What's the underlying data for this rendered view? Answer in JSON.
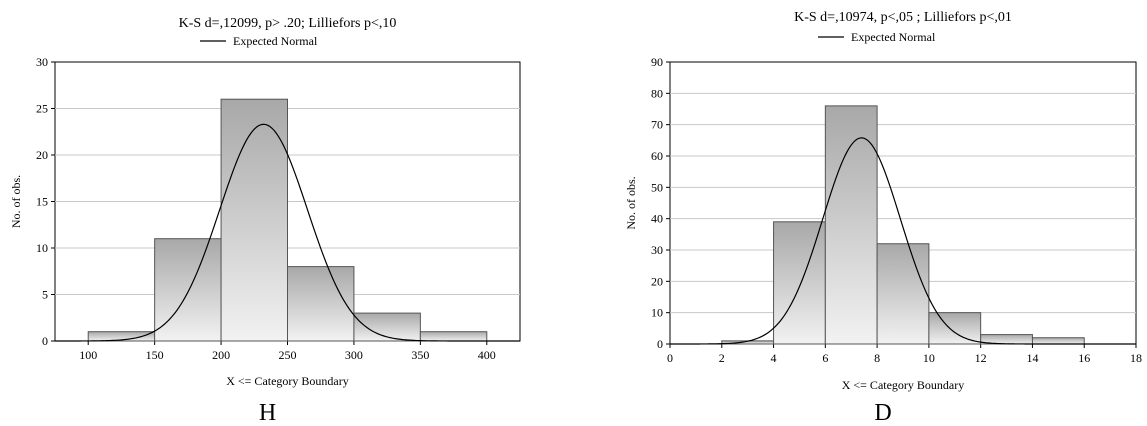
{
  "chart_data": [
    {
      "type": "bar",
      "panel_label": "H",
      "title": "K-S d=,12099, p> .20; Lilliefors p<,10",
      "legend": {
        "entries": [
          "Expected Normal"
        ],
        "placement": "top"
      },
      "xlabel": "X <= Category Boundary",
      "ylabel": "No. of obs.",
      "xlim": [
        75,
        425
      ],
      "ylim": [
        0,
        30
      ],
      "xticks": [
        "100",
        "150",
        "200",
        "250",
        "300",
        "350",
        "400"
      ],
      "yticks": [
        "0",
        "5",
        "10",
        "15",
        "20",
        "25",
        "30"
      ],
      "grid": true,
      "bins": [
        {
          "from": 100,
          "to": 150,
          "count": 1
        },
        {
          "from": 150,
          "to": 200,
          "count": 11
        },
        {
          "from": 200,
          "to": 250,
          "count": 26
        },
        {
          "from": 250,
          "to": 300,
          "count": 8
        },
        {
          "from": 300,
          "to": 350,
          "count": 3
        },
        {
          "from": 350,
          "to": 400,
          "count": 1
        }
      ],
      "normal_curve": {
        "mean": 232,
        "peak": 23.3,
        "sd": 33
      }
    },
    {
      "type": "bar",
      "panel_label": "D",
      "title": "K-S d=,10974, p<,05 ; Lilliefors p<,01",
      "legend": {
        "entries": [
          "Expected Normal"
        ],
        "placement": "top"
      },
      "xlabel": "X <= Category Boundary",
      "ylabel": "No. of obs.",
      "xlim": [
        0,
        18
      ],
      "ylim": [
        0,
        90
      ],
      "xticks": [
        "0",
        "2",
        "4",
        "6",
        "8",
        "10",
        "12",
        "14",
        "16",
        "18"
      ],
      "yticks": [
        "0",
        "10",
        "20",
        "30",
        "40",
        "50",
        "60",
        "70",
        "80",
        "90"
      ],
      "grid": true,
      "bins": [
        {
          "from": 2,
          "to": 4,
          "count": 1
        },
        {
          "from": 4,
          "to": 6,
          "count": 39
        },
        {
          "from": 6,
          "to": 8,
          "count": 76
        },
        {
          "from": 8,
          "to": 10,
          "count": 32
        },
        {
          "from": 10,
          "to": 12,
          "count": 10
        },
        {
          "from": 12,
          "to": 14,
          "count": 3
        },
        {
          "from": 14,
          "to": 16,
          "count": 2
        }
      ],
      "normal_curve": {
        "mean": 7.4,
        "peak": 65.8,
        "sd": 1.5
      }
    }
  ]
}
